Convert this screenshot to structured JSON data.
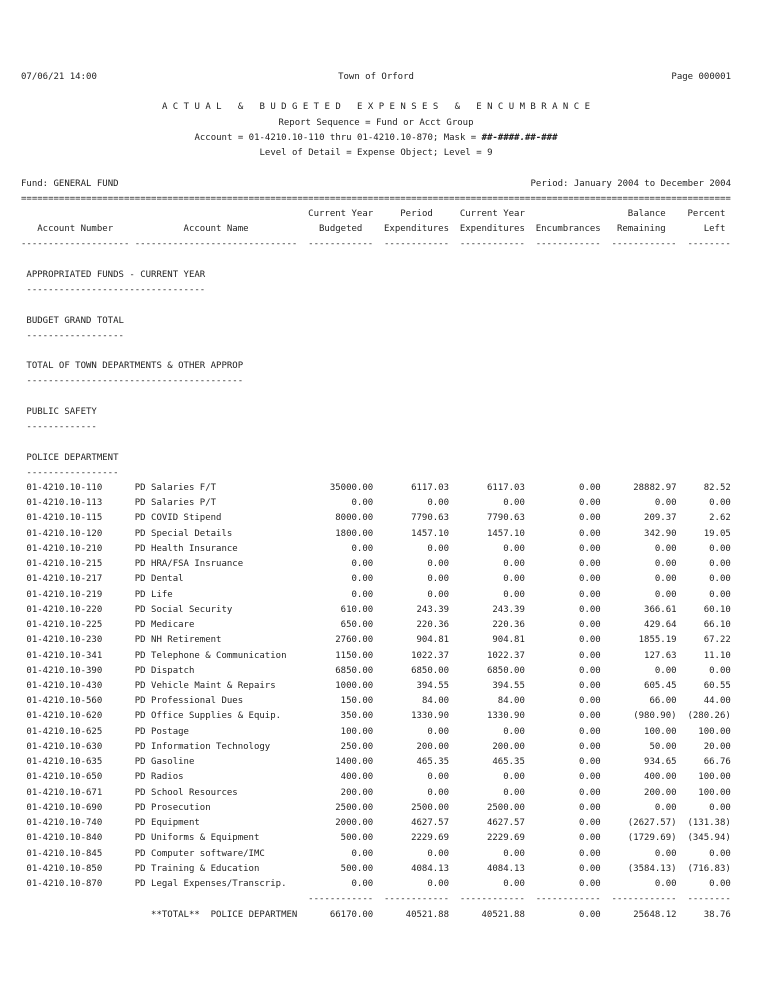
{
  "page_header": {
    "datetime": "07/06/21 14:00",
    "town": "Town of Orford",
    "page_label": "Page 000001"
  },
  "report": {
    "title": "A C T U A L   &   B U D G E T E D   E X P E N S E S   &   E N C U M B R A N C E",
    "sequence_line": "Report Sequence = Fund or Acct Group",
    "account_line_prefix": "Account = 01-4210.10-110 thru 01-4210.10-870; Mask = ",
    "account_mask": "##-####.##-###",
    "detail_line": "Level of Detail = Expense Object; Level = 9",
    "fund_label": "Fund: GENERAL FUND",
    "period_label": "Period: January 2004 to December 2004",
    "separator": "==================================================================================================================================="
  },
  "table": {
    "header_line1": [
      "",
      "",
      "Current Year",
      "Period",
      "Current Year",
      "",
      "Balance",
      "Percent"
    ],
    "header_line2": [
      "Account Number",
      "Account Name",
      "Budgeted",
      "Expenditures",
      "Expenditures",
      "Encumbrances",
      "Remaining",
      "Left"
    ],
    "header_dashes": [
      "--------------------",
      "------------------------------",
      "------------",
      "------------",
      "------------",
      "------------",
      "------------",
      "--------"
    ],
    "pretotal_dashes": [
      "------------",
      "------------",
      "------------",
      "------------",
      "------------",
      "--------"
    ],
    "rows": [
      {
        "account": "01-4210.10-110",
        "name": "PD Salaries F/T",
        "budgeted": "35000.00",
        "period": "6117.03",
        "cy_exp": "6117.03",
        "encumb": "0.00",
        "balance": "28882.97",
        "percent": "82.52"
      },
      {
        "account": "01-4210.10-113",
        "name": "PD Salaries P/T",
        "budgeted": "0.00",
        "period": "0.00",
        "cy_exp": "0.00",
        "encumb": "0.00",
        "balance": "0.00",
        "percent": "0.00"
      },
      {
        "account": "01-4210.10-115",
        "name": "PD COVID Stipend",
        "budgeted": "8000.00",
        "period": "7790.63",
        "cy_exp": "7790.63",
        "encumb": "0.00",
        "balance": "209.37",
        "percent": "2.62"
      },
      {
        "account": "01-4210.10-120",
        "name": "PD Special Details",
        "budgeted": "1800.00",
        "period": "1457.10",
        "cy_exp": "1457.10",
        "encumb": "0.00",
        "balance": "342.90",
        "percent": "19.05"
      },
      {
        "account": "01-4210.10-210",
        "name": "PD Health Insurance",
        "budgeted": "0.00",
        "period": "0.00",
        "cy_exp": "0.00",
        "encumb": "0.00",
        "balance": "0.00",
        "percent": "0.00"
      },
      {
        "account": "01-4210.10-215",
        "name": "PD HRA/FSA Insruance",
        "budgeted": "0.00",
        "period": "0.00",
        "cy_exp": "0.00",
        "encumb": "0.00",
        "balance": "0.00",
        "percent": "0.00"
      },
      {
        "account": "01-4210.10-217",
        "name": "PD Dental",
        "budgeted": "0.00",
        "period": "0.00",
        "cy_exp": "0.00",
        "encumb": "0.00",
        "balance": "0.00",
        "percent": "0.00"
      },
      {
        "account": "01-4210.10-219",
        "name": "PD Life",
        "budgeted": "0.00",
        "period": "0.00",
        "cy_exp": "0.00",
        "encumb": "0.00",
        "balance": "0.00",
        "percent": "0.00"
      },
      {
        "account": "01-4210.10-220",
        "name": "PD Social Security",
        "budgeted": "610.00",
        "period": "243.39",
        "cy_exp": "243.39",
        "encumb": "0.00",
        "balance": "366.61",
        "percent": "60.10"
      },
      {
        "account": "01-4210.10-225",
        "name": "PD Medicare",
        "budgeted": "650.00",
        "period": "220.36",
        "cy_exp": "220.36",
        "encumb": "0.00",
        "balance": "429.64",
        "percent": "66.10"
      },
      {
        "account": "01-4210.10-230",
        "name": "PD NH Retirement",
        "budgeted": "2760.00",
        "period": "904.81",
        "cy_exp": "904.81",
        "encumb": "0.00",
        "balance": "1855.19",
        "percent": "67.22"
      },
      {
        "account": "01-4210.10-341",
        "name": "PD Telephone & Communication",
        "budgeted": "1150.00",
        "period": "1022.37",
        "cy_exp": "1022.37",
        "encumb": "0.00",
        "balance": "127.63",
        "percent": "11.10"
      },
      {
        "account": "01-4210.10-390",
        "name": "PD Dispatch",
        "budgeted": "6850.00",
        "period": "6850.00",
        "cy_exp": "6850.00",
        "encumb": "0.00",
        "balance": "0.00",
        "percent": "0.00"
      },
      {
        "account": "01-4210.10-430",
        "name": "PD Vehicle Maint & Repairs",
        "budgeted": "1000.00",
        "period": "394.55",
        "cy_exp": "394.55",
        "encumb": "0.00",
        "balance": "605.45",
        "percent": "60.55"
      },
      {
        "account": "01-4210.10-560",
        "name": "PD Professional Dues",
        "budgeted": "150.00",
        "period": "84.00",
        "cy_exp": "84.00",
        "encumb": "0.00",
        "balance": "66.00",
        "percent": "44.00"
      },
      {
        "account": "01-4210.10-620",
        "name": "PD Office Supplies & Equip.",
        "budgeted": "350.00",
        "period": "1330.90",
        "cy_exp": "1330.90",
        "encumb": "0.00",
        "balance": "(980.90)",
        "percent": "(280.26)"
      },
      {
        "account": "01-4210.10-625",
        "name": "PD Postage",
        "budgeted": "100.00",
        "period": "0.00",
        "cy_exp": "0.00",
        "encumb": "0.00",
        "balance": "100.00",
        "percent": "100.00"
      },
      {
        "account": "01-4210.10-630",
        "name": "PD Information Technology",
        "budgeted": "250.00",
        "period": "200.00",
        "cy_exp": "200.00",
        "encumb": "0.00",
        "balance": "50.00",
        "percent": "20.00"
      },
      {
        "account": "01-4210.10-635",
        "name": "PD Gasoline",
        "budgeted": "1400.00",
        "period": "465.35",
        "cy_exp": "465.35",
        "encumb": "0.00",
        "balance": "934.65",
        "percent": "66.76"
      },
      {
        "account": "01-4210.10-650",
        "name": "PD Radios",
        "budgeted": "400.00",
        "period": "0.00",
        "cy_exp": "0.00",
        "encumb": "0.00",
        "balance": "400.00",
        "percent": "100.00"
      },
      {
        "account": "01-4210.10-671",
        "name": "PD School Resources",
        "budgeted": "200.00",
        "period": "0.00",
        "cy_exp": "0.00",
        "encumb": "0.00",
        "balance": "200.00",
        "percent": "100.00"
      },
      {
        "account": "01-4210.10-690",
        "name": "PD Prosecution",
        "budgeted": "2500.00",
        "period": "2500.00",
        "cy_exp": "2500.00",
        "encumb": "0.00",
        "balance": "0.00",
        "percent": "0.00"
      },
      {
        "account": "01-4210.10-740",
        "name": "PD Equipment",
        "budgeted": "2000.00",
        "period": "4627.57",
        "cy_exp": "4627.57",
        "encumb": "0.00",
        "balance": "(2627.57)",
        "percent": "(131.38)"
      },
      {
        "account": "01-4210.10-840",
        "name": "PD Uniforms & Equipment",
        "budgeted": "500.00",
        "period": "2229.69",
        "cy_exp": "2229.69",
        "encumb": "0.00",
        "balance": "(1729.69)",
        "percent": "(345.94)"
      },
      {
        "account": "01-4210.10-845",
        "name": "PD Computer software/IMC",
        "budgeted": "0.00",
        "period": "0.00",
        "cy_exp": "0.00",
        "encumb": "0.00",
        "balance": "0.00",
        "percent": "0.00"
      },
      {
        "account": "01-4210.10-850",
        "name": "PD Training & Education",
        "budgeted": "500.00",
        "period": "4084.13",
        "cy_exp": "4084.13",
        "encumb": "0.00",
        "balance": "(3584.13)",
        "percent": "(716.83)"
      },
      {
        "account": "01-4210.10-870",
        "name": "PD Legal Expenses/Transcrip.",
        "budgeted": "0.00",
        "period": "0.00",
        "cy_exp": "0.00",
        "encumb": "0.00",
        "balance": "0.00",
        "percent": "0.00"
      }
    ],
    "total": {
      "label": "**TOTAL**  POLICE DEPARTMENT",
      "budgeted": "66170.00",
      "period": "40521.88",
      "cy_exp": "40521.88",
      "encumb": "0.00",
      "balance": "25648.12",
      "percent": "38.76"
    }
  },
  "sections": [
    {
      "label": "APPROPRIATED FUNDS - CURRENT YEAR",
      "underline": "---------------------------------"
    },
    {
      "label": "BUDGET GRAND TOTAL",
      "underline": "------------------"
    },
    {
      "label": "TOTAL OF TOWN DEPARTMENTS & OTHER APPROP",
      "underline": "----------------------------------------"
    },
    {
      "label": "PUBLIC SAFETY",
      "underline": "-------------"
    },
    {
      "label": "POLICE DEPARTMENT",
      "underline": "-----------------"
    }
  ]
}
